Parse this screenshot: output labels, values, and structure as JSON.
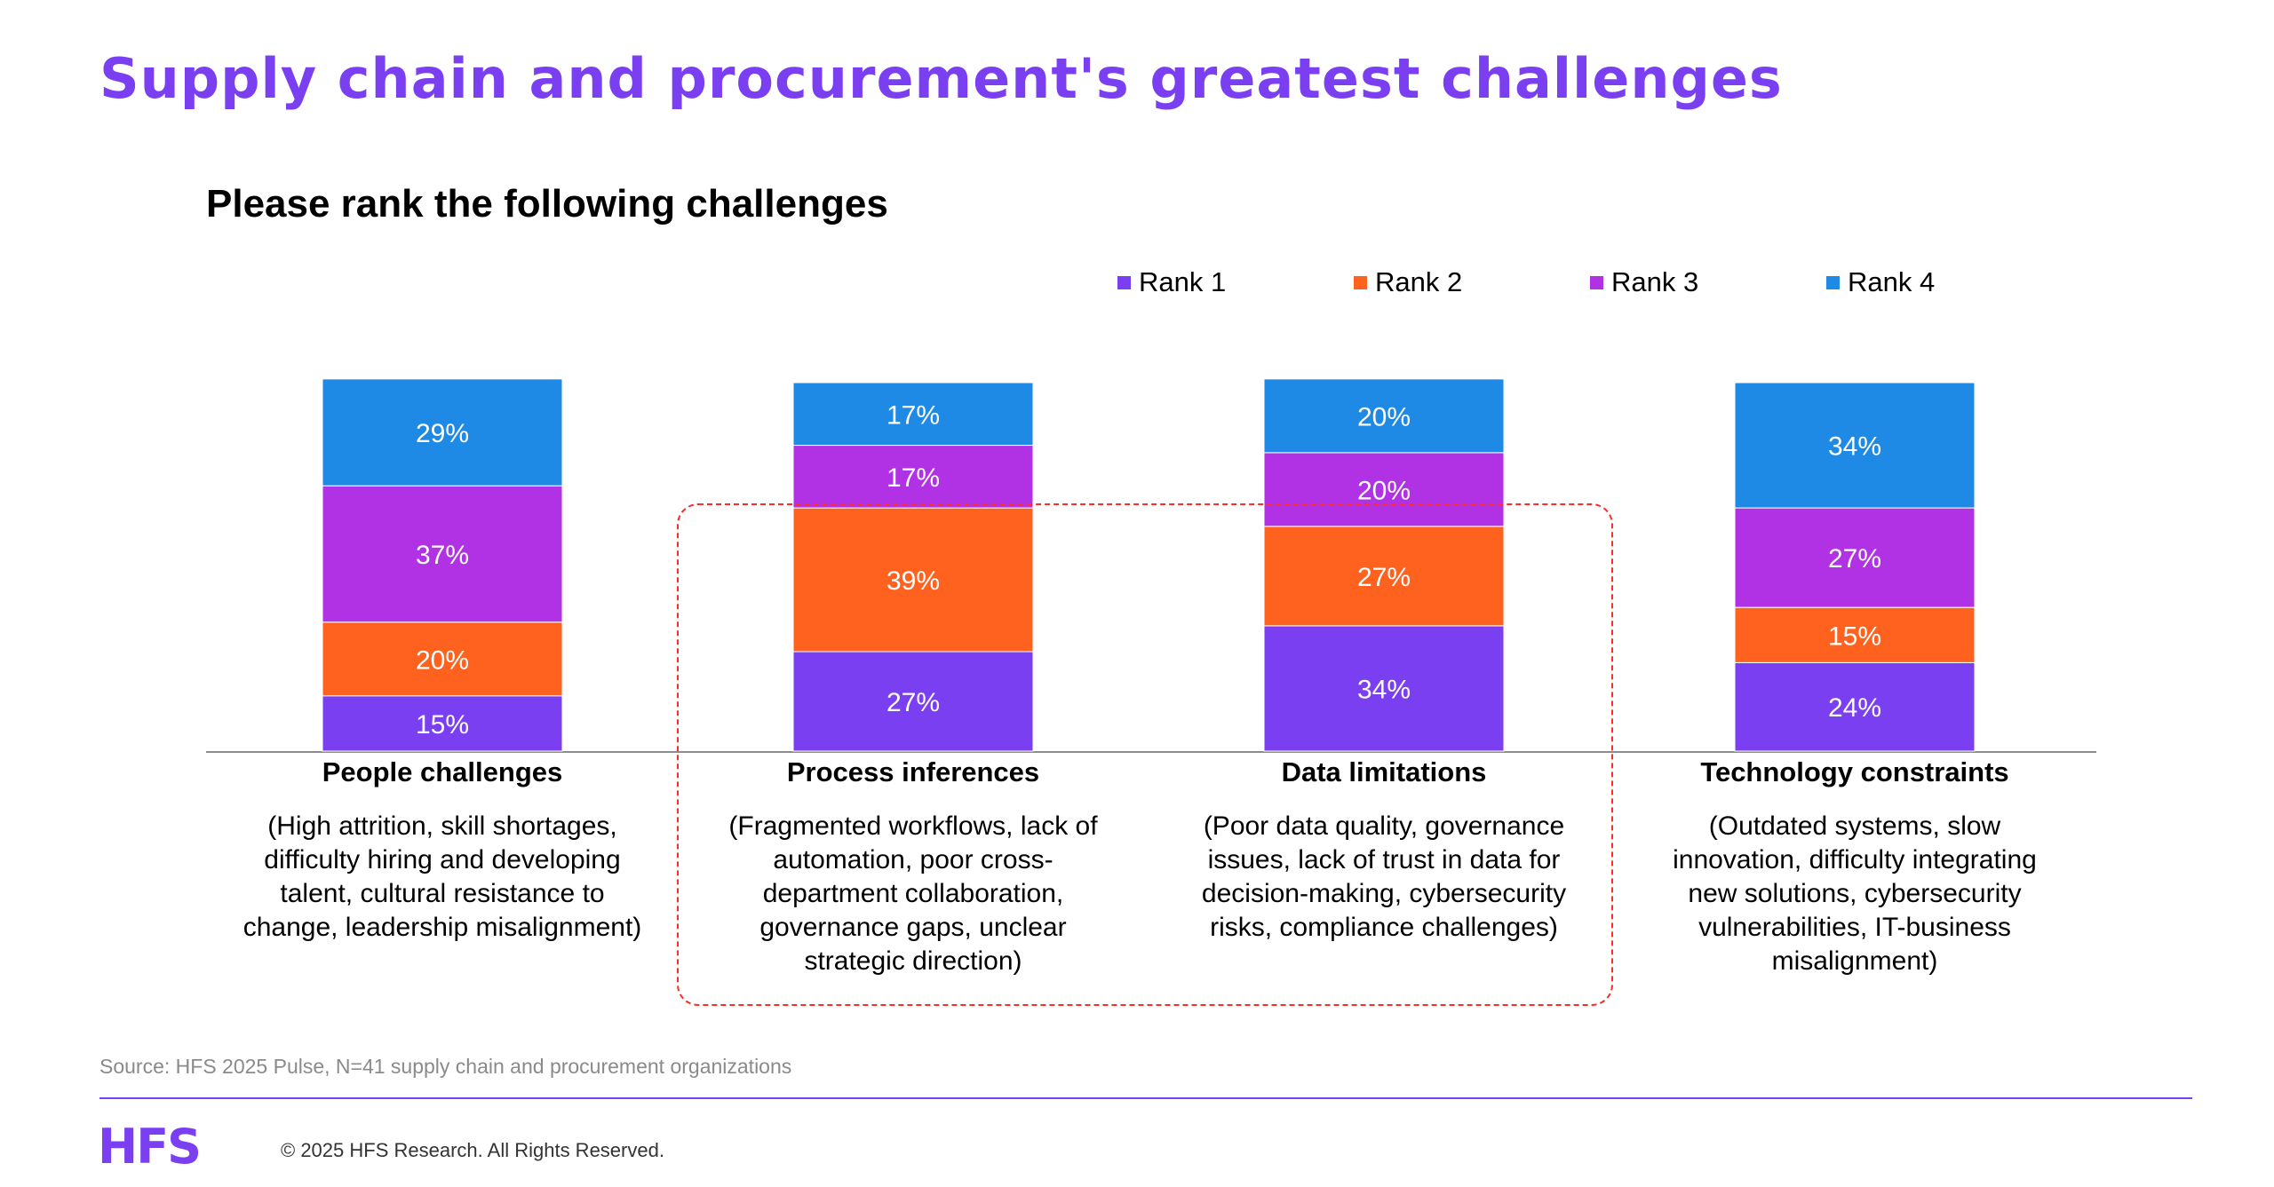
{
  "title": "Supply chain and procurement's greatest challenges",
  "subtitle": "Please rank the following challenges",
  "colors": {
    "title": "#7b3ff2",
    "rank1": "#7b3ff2",
    "rank2": "#ff621e",
    "rank3": "#b132e4",
    "rank4": "#1e8ae6",
    "highlight": "#ff2b2b"
  },
  "chart_data": {
    "type": "bar",
    "stacked": true,
    "categories": [
      "People challenges",
      "Process inferences",
      "Data limitations",
      "Technology constraints"
    ],
    "category_descriptions": [
      "(High attrition, skill shortages, difficulty hiring and developing talent, cultural resistance to change, leadership misalignment)",
      "(Fragmented workflows, lack of automation, poor cross-department collaboration, governance gaps, unclear strategic direction)",
      "(Poor data quality, governance issues, lack of trust in data for decision-making, cybersecurity risks, compliance challenges)",
      "(Outdated systems, slow innovation, difficulty integrating new solutions, cybersecurity vulnerabilities, IT-business misalignment)"
    ],
    "series": [
      {
        "name": "Rank 1",
        "values": [
          15,
          27,
          34,
          24
        ],
        "labels": [
          "15%",
          "27%",
          "34%",
          "24%"
        ]
      },
      {
        "name": "Rank 2",
        "values": [
          20,
          39,
          27,
          15
        ],
        "labels": [
          "20%",
          "39%",
          "27%",
          "15%"
        ]
      },
      {
        "name": "Rank 3",
        "values": [
          37,
          17,
          20,
          27
        ],
        "labels": [
          "37%",
          "17%",
          "20%",
          "27%"
        ]
      },
      {
        "name": "Rank 4",
        "values": [
          29,
          17,
          20,
          34
        ],
        "labels": [
          "29%",
          "17%",
          "20%",
          "34%"
        ]
      }
    ],
    "legend_position": "top-right",
    "grid": false,
    "highlighted_categories": [
      "Process inferences",
      "Data limitations"
    ]
  },
  "source": "Source: HFS 2025 Pulse, N=41 supply chain and procurement organizations",
  "footer": {
    "logo": "HFS",
    "copyright": "© 2025 HFS Research. All Rights Reserved."
  }
}
